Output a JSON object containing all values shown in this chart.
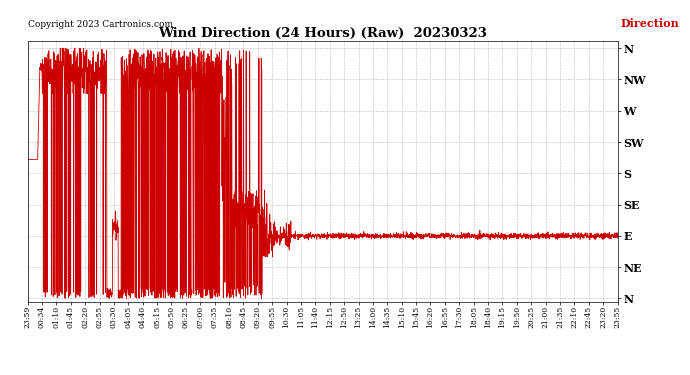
{
  "title": "Wind Direction (24 Hours) (Raw)  20230323",
  "copyright_text": "Copyright 2023 Cartronics.com",
  "legend_label": "Direction",
  "background_color": "#ffffff",
  "plot_bg_color": "#ffffff",
  "line_color": "#cc0000",
  "legend_color": "#cc0000",
  "title_color": "#000000",
  "copyright_color": "#000000",
  "grid_color": "#aaaaaa",
  "ytick_labels": [
    "N",
    "NW",
    "W",
    "SW",
    "S",
    "SE",
    "E",
    "NE",
    "N"
  ],
  "ytick_values": [
    360,
    315,
    270,
    225,
    180,
    135,
    90,
    45,
    0
  ],
  "xtick_labels": [
    "23:59",
    "00:34",
    "01:10",
    "01:45",
    "02:20",
    "02:55",
    "03:30",
    "04:05",
    "04:40",
    "05:15",
    "05:50",
    "06:25",
    "07:00",
    "07:35",
    "08:10",
    "08:45",
    "09:20",
    "09:55",
    "10:30",
    "11:05",
    "11:40",
    "12:15",
    "12:50",
    "13:25",
    "14:00",
    "14:35",
    "15:10",
    "15:45",
    "16:20",
    "16:55",
    "17:30",
    "18:05",
    "18:40",
    "19:15",
    "19:50",
    "20:25",
    "21:00",
    "21:35",
    "22:10",
    "22:45",
    "23:20",
    "23:55"
  ],
  "ylim": [
    -5,
    370
  ],
  "xlim_min": 0,
  "xlim_max": 41
}
